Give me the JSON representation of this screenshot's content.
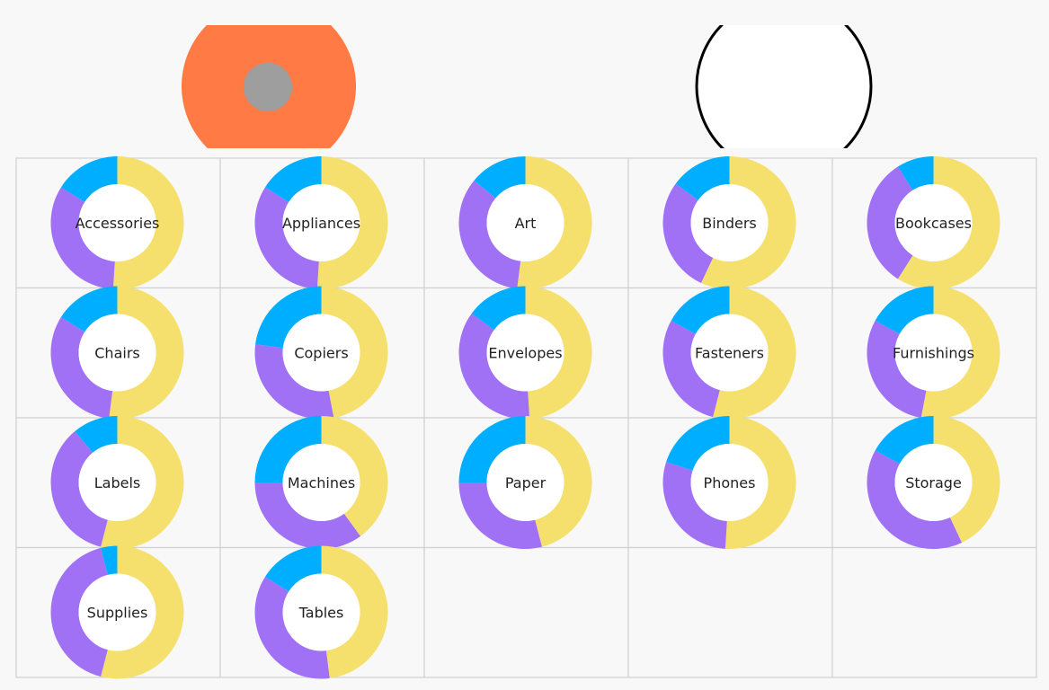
{
  "header_graphics": {
    "left_badge": {
      "fill": "#ff7a45",
      "dot_fill": "#9e9e9e",
      "icon": "orange-disc-icon"
    },
    "right_badge": {
      "fill": "#ffffff",
      "stroke": "#000000",
      "icon": "white-circle-icon"
    }
  },
  "colors": {
    "grid_line": "#d0d0d0",
    "cell_bg": "#f8f8f8",
    "segment_colors": [
      "#f5e06e",
      "#a070f5",
      "#00aeff"
    ]
  },
  "chart_data": {
    "type": "pie",
    "variant": "donut",
    "layout": "small-multiples",
    "columns": 5,
    "segments_order": [
      "yellow",
      "purple",
      "blue"
    ],
    "categories": [
      {
        "label": "Accessories",
        "shares": [
          0.51,
          0.33,
          0.16
        ]
      },
      {
        "label": "Appliances",
        "shares": [
          0.51,
          0.33,
          0.16
        ]
      },
      {
        "label": "Art",
        "shares": [
          0.52,
          0.34,
          0.14
        ]
      },
      {
        "label": "Binders",
        "shares": [
          0.57,
          0.28,
          0.15
        ]
      },
      {
        "label": "Bookcases",
        "shares": [
          0.59,
          0.32,
          0.09
        ]
      },
      {
        "label": "Chairs",
        "shares": [
          0.52,
          0.32,
          0.16
        ]
      },
      {
        "label": "Copiers",
        "shares": [
          0.47,
          0.3,
          0.23
        ]
      },
      {
        "label": "Envelopes",
        "shares": [
          0.49,
          0.36,
          0.15
        ]
      },
      {
        "label": "Fasteners",
        "shares": [
          0.54,
          0.29,
          0.17
        ]
      },
      {
        "label": "Furnishings",
        "shares": [
          0.53,
          0.3,
          0.17
        ]
      },
      {
        "label": "Labels",
        "shares": [
          0.54,
          0.35,
          0.11
        ]
      },
      {
        "label": "Machines",
        "shares": [
          0.4,
          0.35,
          0.25
        ]
      },
      {
        "label": "Paper",
        "shares": [
          0.46,
          0.29,
          0.25
        ]
      },
      {
        "label": "Phones",
        "shares": [
          0.51,
          0.29,
          0.2
        ]
      },
      {
        "label": "Storage",
        "shares": [
          0.43,
          0.4,
          0.17
        ]
      },
      {
        "label": "Supplies",
        "shares": [
          0.54,
          0.42,
          0.04
        ]
      },
      {
        "label": "Tables",
        "shares": [
          0.48,
          0.36,
          0.16
        ]
      }
    ]
  }
}
